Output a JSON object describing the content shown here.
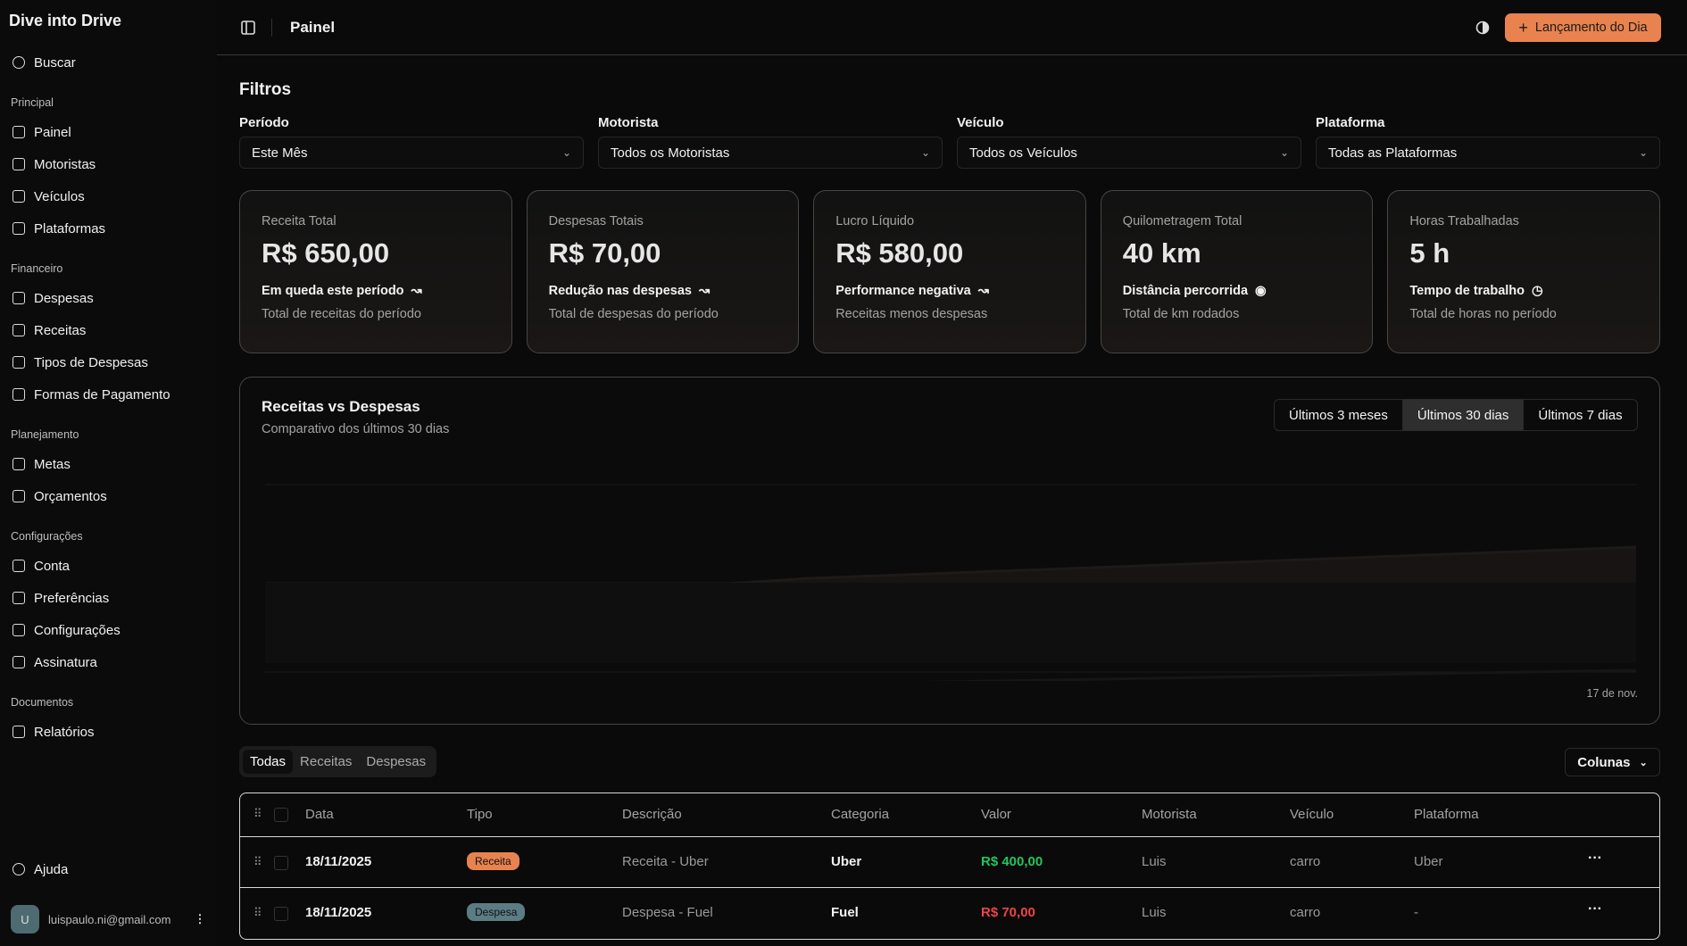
{
  "sidebar": {
    "brand": "Dive into Drive",
    "search": "Buscar",
    "sections": [
      {
        "title": "Principal",
        "items": [
          "Painel",
          "Motoristas",
          "Veículos",
          "Plataformas"
        ]
      },
      {
        "title": "Financeiro",
        "items": [
          "Despesas",
          "Receitas",
          "Tipos de Despesas",
          "Formas de Pagamento"
        ]
      },
      {
        "title": "Planejamento",
        "items": [
          "Metas",
          "Orçamentos"
        ]
      },
      {
        "title": "Configurações",
        "items": [
          "Conta",
          "Preferências",
          "Configurações",
          "Assinatura"
        ]
      },
      {
        "title": "Documentos",
        "items": [
          "Relatórios"
        ]
      }
    ],
    "help": "Ajuda",
    "user": {
      "avatar": "U",
      "email": "luispaulo.ni@gmail.com"
    }
  },
  "header": {
    "title": "Painel",
    "action": "Lançamento do Dia"
  },
  "filters": {
    "title": "Filtros",
    "fields": [
      {
        "label": "Período",
        "value": "Este Mês"
      },
      {
        "label": "Motorista",
        "value": "Todos os Motoristas"
      },
      {
        "label": "Veículo",
        "value": "Todos os Veículos"
      },
      {
        "label": "Plataforma",
        "value": "Todas as Plataformas"
      }
    ]
  },
  "cards": [
    {
      "label": "Receita Total",
      "value": "R$ 650,00",
      "trend": "Em queda este período",
      "note": "Total de receitas do período"
    },
    {
      "label": "Despesas Totais",
      "value": "R$ 70,00",
      "trend": "Redução nas despesas",
      "note": "Total de despesas do período"
    },
    {
      "label": "Lucro Líquido",
      "value": "R$ 580,00",
      "trend": "Performance negativa",
      "note": "Receitas menos despesas"
    },
    {
      "label": "Quilometragem Total",
      "value": "40 km",
      "trend": "Distância percorrida",
      "note": "Total de km rodados"
    },
    {
      "label": "Horas Trabalhadas",
      "value": "5 h",
      "trend": "Tempo de trabalho",
      "note": "Total de horas no período"
    }
  ],
  "chart": {
    "title": "Receitas vs Despesas",
    "subtitle": "Comparativo dos últimos 30 dias",
    "ranges": [
      "Últimos 3 meses",
      "Últimos 30 dias",
      "Últimos 7 dias"
    ],
    "x_label": "17 de nov."
  },
  "tabs": [
    "Todas",
    "Receitas",
    "Despesas"
  ],
  "columns_button": "Colunas",
  "table": {
    "headers": [
      "Data",
      "Tipo",
      "Descrição",
      "Categoria",
      "Valor",
      "Motorista",
      "Veículo",
      "Plataforma"
    ],
    "rows": [
      [
        "18/11/2025",
        "Receita",
        "Receita - Uber",
        "Uber",
        "R$ 400,00",
        "Luis",
        "carro",
        "Uber"
      ],
      [
        "18/11/2025",
        "Despesa",
        "Despesa - Fuel",
        "Fuel",
        "R$ 70,00",
        "Luis",
        "carro",
        "-"
      ]
    ]
  }
}
